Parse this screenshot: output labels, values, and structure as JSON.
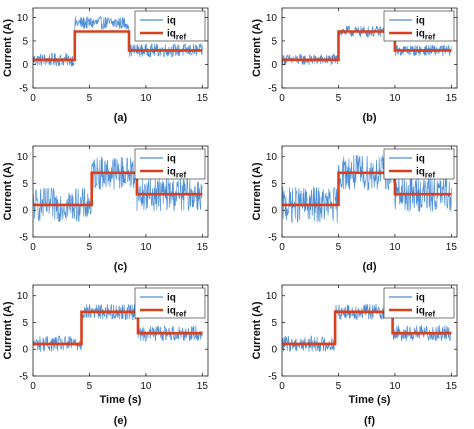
{
  "chart_data": [
    {
      "type": "line",
      "panel_label": "(a)",
      "ylabel": "Current (A)",
      "xlabel": "",
      "xlim": [
        0,
        15.5
      ],
      "ylim": [
        -5,
        12
      ],
      "xticks": [
        "0",
        "5",
        "10",
        "15"
      ],
      "yticks": [
        "-5",
        "0",
        "5",
        "10"
      ],
      "legend": {
        "position": "top-right",
        "entries": [
          "iq",
          "iqref"
        ]
      },
      "series": [
        {
          "name": "iq",
          "color": "#4f8fd6",
          "kind": "noisy",
          "x_range": [
            0,
            15
          ],
          "noise_amplitude": 1.4,
          "levels": [
            {
              "from": 0,
              "to": 3.7,
              "mean": 1
            },
            {
              "from": 3.7,
              "to": 8.5,
              "mean": 8.8
            },
            {
              "from": 8.5,
              "to": 15,
              "mean": 3
            }
          ]
        },
        {
          "name": "iqref",
          "color": "#d9401e",
          "kind": "step",
          "x": [
            0,
            3.7,
            3.7,
            8.5,
            8.5,
            15
          ],
          "y": [
            1,
            1,
            7,
            7,
            3,
            3
          ]
        }
      ]
    },
    {
      "type": "line",
      "panel_label": "(b)",
      "ylabel": "Current (A)",
      "xlabel": "",
      "xlim": [
        0,
        15.5
      ],
      "ylim": [
        -5,
        12
      ],
      "xticks": [
        "0",
        "5",
        "10",
        "15"
      ],
      "yticks": [
        "-5",
        "0",
        "5",
        "10"
      ],
      "legend": {
        "position": "top-right",
        "entries": [
          "iq",
          "iqref"
        ]
      },
      "series": [
        {
          "name": "iq",
          "color": "#4f8fd6",
          "kind": "noisy",
          "x_range": [
            0,
            15
          ],
          "noise_amplitude": 1.2,
          "levels": [
            {
              "from": 0,
              "to": 5,
              "mean": 1
            },
            {
              "from": 5,
              "to": 10,
              "mean": 7
            },
            {
              "from": 10,
              "to": 15,
              "mean": 3
            }
          ]
        },
        {
          "name": "iqref",
          "color": "#d9401e",
          "kind": "step",
          "x": [
            0,
            5,
            5,
            10,
            10,
            15
          ],
          "y": [
            1,
            1,
            7,
            7,
            3,
            3
          ]
        }
      ]
    },
    {
      "type": "line",
      "panel_label": "(c)",
      "ylabel": "Current (A)",
      "xlabel": "",
      "xlim": [
        0,
        15.5
      ],
      "ylim": [
        -5,
        12
      ],
      "xticks": [
        "0",
        "5",
        "10",
        "15"
      ],
      "yticks": [
        "-5",
        "0",
        "5",
        "10"
      ],
      "legend": {
        "position": "top-right",
        "entries": [
          "iq",
          "iqref"
        ]
      },
      "series": [
        {
          "name": "iq",
          "color": "#4f8fd6",
          "kind": "noisy",
          "x_range": [
            0,
            15
          ],
          "noise_amplitude": 3.2,
          "levels": [
            {
              "from": 0,
              "to": 5.2,
              "mean": 1
            },
            {
              "from": 5.2,
              "to": 9.2,
              "mean": 7
            },
            {
              "from": 9.2,
              "to": 15,
              "mean": 3
            }
          ]
        },
        {
          "name": "iqref",
          "color": "#d9401e",
          "kind": "step",
          "x": [
            0,
            5.2,
            5.2,
            9.2,
            9.2,
            15
          ],
          "y": [
            1,
            1,
            7,
            7,
            3,
            3
          ]
        }
      ]
    },
    {
      "type": "line",
      "panel_label": "(d)",
      "ylabel": "Current (A)",
      "xlabel": "",
      "xlim": [
        0,
        15.5
      ],
      "ylim": [
        -5,
        12
      ],
      "xticks": [
        "0",
        "5",
        "10",
        "15"
      ],
      "yticks": [
        "-5",
        "0",
        "5",
        "10"
      ],
      "legend": {
        "position": "top-right",
        "entries": [
          "iq",
          "iqref"
        ]
      },
      "series": [
        {
          "name": "iq",
          "color": "#4f8fd6",
          "kind": "noisy",
          "x_range": [
            0,
            15
          ],
          "noise_amplitude": 3.4,
          "levels": [
            {
              "from": 0,
              "to": 5,
              "mean": 1
            },
            {
              "from": 5,
              "to": 10,
              "mean": 7
            },
            {
              "from": 10,
              "to": 15,
              "mean": 3
            }
          ]
        },
        {
          "name": "iqref",
          "color": "#d9401e",
          "kind": "step",
          "x": [
            0,
            5,
            5,
            10,
            10,
            15
          ],
          "y": [
            1,
            1,
            7,
            7,
            3,
            3
          ]
        }
      ]
    },
    {
      "type": "line",
      "panel_label": "(e)",
      "ylabel": "Current (A)",
      "xlabel": "Time (s)",
      "xlim": [
        0,
        15.5
      ],
      "ylim": [
        -5,
        12
      ],
      "xticks": [
        "0",
        "5",
        "10",
        "15"
      ],
      "yticks": [
        "-5",
        "0",
        "5",
        "10"
      ],
      "legend": {
        "position": "top-right",
        "entries": [
          "iq",
          "iqref"
        ]
      },
      "series": [
        {
          "name": "iq",
          "color": "#4f8fd6",
          "kind": "noisy",
          "x_range": [
            0,
            15
          ],
          "noise_amplitude": 1.5,
          "levels": [
            {
              "from": 0,
              "to": 4.3,
              "mean": 1
            },
            {
              "from": 4.3,
              "to": 9.3,
              "mean": 7
            },
            {
              "from": 9.3,
              "to": 15,
              "mean": 3
            }
          ]
        },
        {
          "name": "iqref",
          "color": "#d9401e",
          "kind": "step",
          "x": [
            0,
            4.3,
            4.3,
            9.3,
            9.3,
            15
          ],
          "y": [
            1,
            1,
            7,
            7,
            3,
            3
          ]
        }
      ]
    },
    {
      "type": "line",
      "panel_label": "(f)",
      "ylabel": "Current (A)",
      "xlabel": "Time (s)",
      "xlim": [
        0,
        15.5
      ],
      "ylim": [
        -5,
        12
      ],
      "xticks": [
        "0",
        "5",
        "10",
        "15"
      ],
      "yticks": [
        "-5",
        "0",
        "5",
        "10"
      ],
      "legend": {
        "position": "top-right",
        "entries": [
          "iq",
          "iqref"
        ]
      },
      "series": [
        {
          "name": "iq",
          "color": "#4f8fd6",
          "kind": "noisy",
          "x_range": [
            0,
            15
          ],
          "noise_amplitude": 1.5,
          "levels": [
            {
              "from": 0,
              "to": 4.7,
              "mean": 1
            },
            {
              "from": 4.7,
              "to": 9.8,
              "mean": 7
            },
            {
              "from": 9.8,
              "to": 15,
              "mean": 3
            }
          ]
        },
        {
          "name": "iqref",
          "color": "#d9401e",
          "kind": "step",
          "x": [
            0,
            4.7,
            4.7,
            9.8,
            9.8,
            15
          ],
          "y": [
            1,
            1,
            7,
            7,
            3,
            3
          ]
        }
      ]
    }
  ]
}
